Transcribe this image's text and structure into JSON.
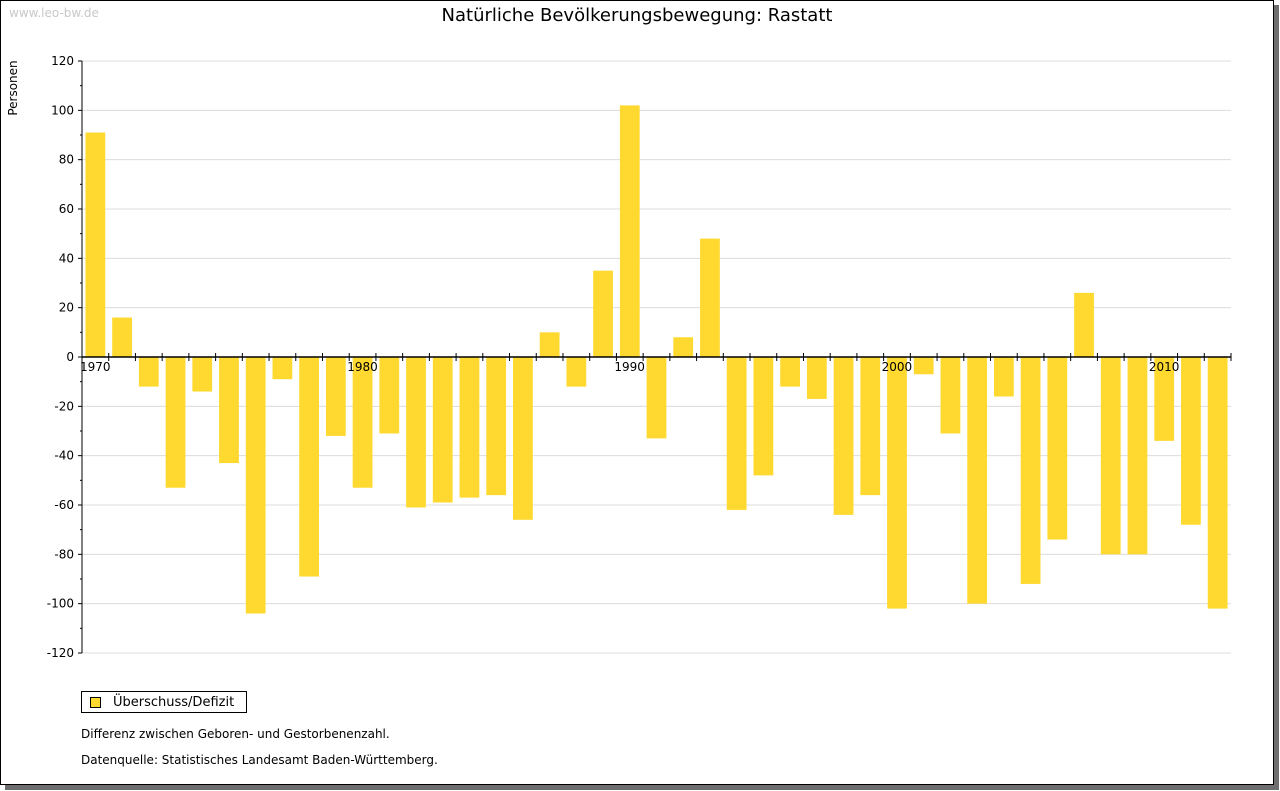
{
  "watermark": "www.leo-bw.de",
  "notes": {
    "difference": "Differenz zwischen Geboren- und Gestorbenenzahl.",
    "source": "Datenquelle: Statistisches Landesamt Baden-Württemberg."
  },
  "colors": {
    "bar": "#ffd92f",
    "grid": "#dcdcdc",
    "axis": "#000000"
  },
  "chart_data": {
    "type": "bar",
    "title": "Natürliche Bevölkerungsbewegung: Rastatt",
    "ylabel": "Personen",
    "xlabel": "",
    "ylim": [
      -120,
      120
    ],
    "yticks": [
      120,
      100,
      80,
      60,
      40,
      20,
      0,
      -20,
      -40,
      -60,
      -80,
      -100,
      -120
    ],
    "grid": true,
    "legend_position": "bottom-left",
    "xtick_labels": [
      "1970",
      "1980",
      "1990",
      "2000",
      "2010"
    ],
    "categories": [
      "1970",
      "1971",
      "1972",
      "1973",
      "1974",
      "1975",
      "1976",
      "1977",
      "1978",
      "1979",
      "1980",
      "1981",
      "1982",
      "1983",
      "1984",
      "1985",
      "1986",
      "1987",
      "1988",
      "1989",
      "1990",
      "1991",
      "1992",
      "1993",
      "1994",
      "1995",
      "1996",
      "1997",
      "1998",
      "1999",
      "2000",
      "2001",
      "2002",
      "2003",
      "2004",
      "2005",
      "2006",
      "2007",
      "2008",
      "2009",
      "2010",
      "2011",
      "2012"
    ],
    "series": [
      {
        "name": "Überschuss/Defizit",
        "values": [
          91,
          16,
          -12,
          -53,
          -14,
          -43,
          -104,
          -9,
          -89,
          -32,
          -53,
          -31,
          -61,
          -59,
          -57,
          -56,
          -66,
          10,
          -12,
          35,
          102,
          -33,
          8,
          48,
          -62,
          -48,
          -12,
          -17,
          -64,
          -56,
          -102,
          -7,
          -31,
          -100,
          -16,
          -92,
          -74,
          26,
          -80,
          -80,
          -34,
          -68,
          -102
        ]
      }
    ]
  }
}
